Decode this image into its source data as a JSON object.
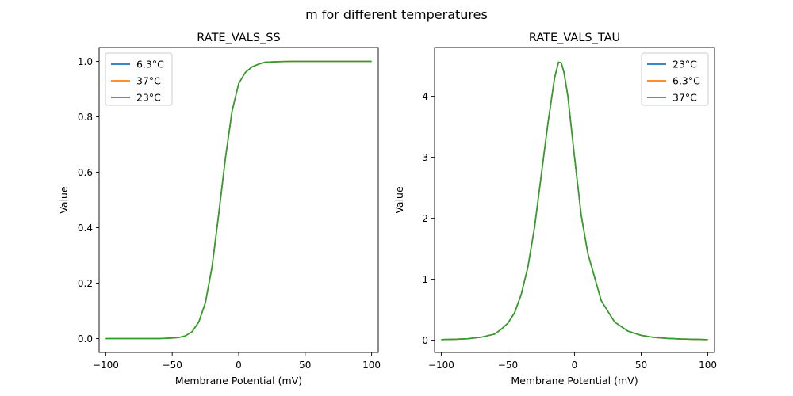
{
  "figure_title": "m for different temperatures",
  "colors": {
    "blue": "#1f77b4",
    "orange": "#ff7f0e",
    "green": "#2ca02c",
    "axis": "#000000",
    "legend_border": "#cccccc"
  },
  "chart_data": [
    {
      "type": "line",
      "title": "RATE_VALS_SS",
      "xlabel": "Membrane Potential (mV)",
      "ylabel": "Value",
      "xlim": [
        -105,
        105
      ],
      "ylim": [
        -0.05,
        1.05
      ],
      "xticks": [
        -100,
        -50,
        0,
        50,
        100
      ],
      "xtick_labels": [
        "−100",
        "−50",
        "0",
        "50",
        "100"
      ],
      "yticks": [
        0.0,
        0.2,
        0.4,
        0.6,
        0.8,
        1.0
      ],
      "ytick_labels": [
        "0.0",
        "0.2",
        "0.4",
        "0.6",
        "0.8",
        "1.0"
      ],
      "grid": false,
      "legend_position": "upper-left",
      "x": [
        -100,
        -90,
        -80,
        -70,
        -60,
        -50,
        -45,
        -40,
        -35,
        -30,
        -25,
        -20,
        -15,
        -10,
        -5,
        0,
        5,
        10,
        15,
        20,
        30,
        40,
        50,
        60,
        70,
        80,
        90,
        100
      ],
      "series": [
        {
          "name": "6.3°C",
          "color": "#1f77b4",
          "y": [
            0.0,
            0.0,
            0.0,
            0.0,
            0.0,
            0.002,
            0.004,
            0.01,
            0.025,
            0.06,
            0.13,
            0.26,
            0.45,
            0.65,
            0.82,
            0.92,
            0.96,
            0.98,
            0.99,
            0.997,
            0.999,
            1.0,
            1.0,
            1.0,
            1.0,
            1.0,
            1.0,
            1.0
          ]
        },
        {
          "name": "37°C",
          "color": "#ff7f0e",
          "y": [
            0.0,
            0.0,
            0.0,
            0.0,
            0.0,
            0.002,
            0.004,
            0.01,
            0.025,
            0.06,
            0.13,
            0.26,
            0.45,
            0.65,
            0.82,
            0.92,
            0.96,
            0.98,
            0.99,
            0.997,
            0.999,
            1.0,
            1.0,
            1.0,
            1.0,
            1.0,
            1.0,
            1.0
          ]
        },
        {
          "name": "23°C",
          "color": "#2ca02c",
          "y": [
            0.0,
            0.0,
            0.0,
            0.0,
            0.0,
            0.002,
            0.004,
            0.01,
            0.025,
            0.06,
            0.13,
            0.26,
            0.45,
            0.65,
            0.82,
            0.92,
            0.96,
            0.98,
            0.99,
            0.997,
            0.999,
            1.0,
            1.0,
            1.0,
            1.0,
            1.0,
            1.0,
            1.0
          ]
        }
      ]
    },
    {
      "type": "line",
      "title": "RATE_VALS_TAU",
      "xlabel": "Membrane Potential (mV)",
      "ylabel": "Value",
      "xlim": [
        -105,
        105
      ],
      "ylim": [
        -0.2,
        4.8
      ],
      "xticks": [
        -100,
        -50,
        0,
        50,
        100
      ],
      "xtick_labels": [
        "−100",
        "−50",
        "0",
        "50",
        "100"
      ],
      "yticks": [
        0,
        1,
        2,
        3,
        4
      ],
      "ytick_labels": [
        "0",
        "1",
        "2",
        "3",
        "4"
      ],
      "grid": false,
      "legend_position": "upper-right",
      "x": [
        -100,
        -90,
        -80,
        -70,
        -60,
        -55,
        -50,
        -45,
        -40,
        -35,
        -30,
        -25,
        -20,
        -15,
        -12,
        -10,
        -8,
        -5,
        0,
        5,
        10,
        20,
        30,
        40,
        50,
        60,
        70,
        80,
        90,
        100
      ],
      "series": [
        {
          "name": "23°C",
          "color": "#1f77b4",
          "y": [
            0.01,
            0.015,
            0.025,
            0.05,
            0.1,
            0.18,
            0.28,
            0.45,
            0.75,
            1.2,
            1.85,
            2.7,
            3.55,
            4.3,
            4.56,
            4.55,
            4.4,
            4.0,
            3.0,
            2.05,
            1.42,
            0.65,
            0.3,
            0.15,
            0.08,
            0.045,
            0.03,
            0.02,
            0.015,
            0.01
          ]
        },
        {
          "name": "6.3°C",
          "color": "#ff7f0e",
          "y": [
            0.01,
            0.015,
            0.025,
            0.05,
            0.1,
            0.18,
            0.28,
            0.45,
            0.75,
            1.2,
            1.85,
            2.7,
            3.55,
            4.3,
            4.56,
            4.55,
            4.4,
            4.0,
            3.0,
            2.05,
            1.42,
            0.65,
            0.3,
            0.15,
            0.08,
            0.045,
            0.03,
            0.02,
            0.015,
            0.01
          ]
        },
        {
          "name": "37°C",
          "color": "#2ca02c",
          "y": [
            0.01,
            0.015,
            0.025,
            0.05,
            0.1,
            0.18,
            0.28,
            0.45,
            0.75,
            1.2,
            1.85,
            2.7,
            3.55,
            4.3,
            4.56,
            4.55,
            4.4,
            4.0,
            3.0,
            2.05,
            1.42,
            0.65,
            0.3,
            0.15,
            0.08,
            0.045,
            0.03,
            0.02,
            0.015,
            0.01
          ]
        }
      ]
    }
  ]
}
